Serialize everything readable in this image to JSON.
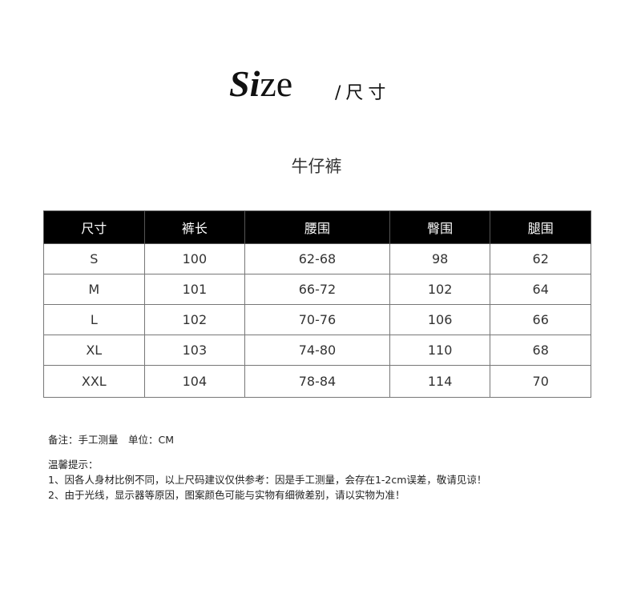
{
  "title": {
    "bold": "Si",
    "rest": "ze",
    "sub": "/尺寸"
  },
  "product": "牛仔裤",
  "table": {
    "headers": [
      "尺寸",
      "裤长",
      "腰围",
      "臀围",
      "腿围"
    ],
    "rows": [
      [
        "S",
        "100",
        "62-68",
        "98",
        "62"
      ],
      [
        "M",
        "101",
        "66-72",
        "102",
        "64"
      ],
      [
        "L",
        "102",
        "70-76",
        "106",
        "66"
      ],
      [
        "XL",
        "103",
        "74-80",
        "110",
        "68"
      ],
      [
        "XXL",
        "104",
        "78-84",
        "114",
        "70"
      ]
    ]
  },
  "notes": {
    "remark": "备注：手工测量　单位：CM",
    "tips_title": "温馨提示：",
    "tips": [
      "1、因各人身材比例不同，以上尺码建议仅供参考：因是手工测量，会存在1-2cm误差，敬请见谅！",
      "2、由于光线，显示器等原因，图案颜色可能与实物有细微差别，请以实物为准！"
    ]
  }
}
